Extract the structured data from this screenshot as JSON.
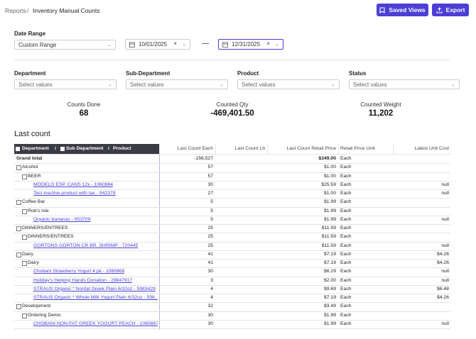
{
  "header": {
    "breadcrumb": [
      "Reports",
      "/",
      "Inventory Manual Counts"
    ],
    "buttons": [
      "Saved Views",
      "Export"
    ]
  },
  "filters": {
    "date_range": {
      "label": "Date Range",
      "preset": "Custom Range",
      "start": "10/01/2025",
      "separator": "—",
      "end": "12/31/2025"
    },
    "fields": [
      {
        "label": "Department",
        "placeholder": "Select values"
      },
      {
        "label": "Sub-Department",
        "placeholder": "Select values"
      },
      {
        "label": "Product",
        "placeholder": "Select values"
      },
      {
        "label": "Status",
        "placeholder": "Select values"
      }
    ]
  },
  "stats": [
    {
      "label": "Counts Done",
      "value": "68"
    },
    {
      "label": "Counted Qty",
      "value": "-469,401.50"
    },
    {
      "label": "Counted Weight",
      "value": "11,202"
    }
  ],
  "table": {
    "title": "Last count",
    "group_header": [
      "Department",
      "/",
      "Sub Department",
      "/",
      "Product"
    ],
    "columns": [
      "Last Count Each",
      "Last Count Lb",
      "Last Count Retail Price",
      "Retail Price Unit",
      "Latest Unit Cost"
    ],
    "grand_total": {
      "name": "Grand total",
      "each": "-156,527",
      "price": "$349.00",
      "unit": "Each"
    },
    "departments": [
      {
        "name": "Alcohol",
        "each": "57",
        "price": "$1.00",
        "unit": "Each",
        "subs": [
          {
            "name": "BEER",
            "each": "57",
            "price": "$1.00",
            "unit": "Each",
            "products": [
              {
                "name": "MODELO ESP. CANS 12x - 1060864",
                "each": "30",
                "price": "$25.59",
                "unit": "Each",
                "cost": "null"
              },
              {
                "name": "Test inactive product with tax - 942378",
                "each": "27",
                "price": "$1.00",
                "unit": "Each",
                "cost": "null"
              }
            ]
          }
        ]
      },
      {
        "name": "Coffee Bar",
        "each": "5",
        "price": "$1.99",
        "unit": "Each",
        "subs": [
          {
            "name": "Rob's Isle",
            "each": "5",
            "price": "$1.99",
            "unit": "Each",
            "products": [
              {
                "name": "Organic bananas - 953709",
                "each": "5",
                "price": "$1.99",
                "unit": "Each",
                "cost": "null"
              }
            ]
          }
        ]
      },
      {
        "name": "DINNERS/ENTREES",
        "each": "25",
        "price": "$11.59",
        "unit": "Each",
        "subs": [
          {
            "name": "DINNERS/ENTREES",
            "each": "25",
            "price": "$11.59",
            "unit": "Each",
            "products": [
              {
                "name": "GORTONS GORTON CR BR. SHRIMP - 720445",
                "each": "25",
                "price": "$11.59",
                "unit": "Each",
                "cost": "null"
              }
            ]
          }
        ]
      },
      {
        "name": "Dairy",
        "each": "41",
        "price": "$7.19",
        "unit": "Each",
        "cost": "$4.26",
        "subs": [
          {
            "name": "Dairy",
            "each": "41",
            "price": "$7.19",
            "unit": "Each",
            "cost": "$4.26",
            "products": [
              {
                "name": "Chobani Strawberry Yogurt 4 pk - 1060868",
                "each": "30",
                "price": "$6.29",
                "unit": "Each",
                "cost": "null"
              },
              {
                "name": "Holiday's Helping Hands Donation - 29847917",
                "each": "3",
                "price": "$2.00",
                "unit": "Each",
                "cost": "null"
              },
              {
                "name": "STRAUS Organic * Nonfat Greek Plain 6/32oz - 5983429",
                "each": "4",
                "price": "$9.69",
                "unit": "Each",
                "cost": "$6.48"
              },
              {
                "name": "STRAUS Organic * Whole Milk Yogurt Plain 6/32oz - 598...",
                "each": "4",
                "price": "$7.19",
                "unit": "Each",
                "cost": "$4.26"
              }
            ]
          }
        ]
      },
      {
        "name": "Development",
        "each": "32",
        "price": "$3.49",
        "unit": "Each",
        "subs": [
          {
            "name": "Ordering Demo",
            "each": "30",
            "price": "$1.99",
            "unit": "Each",
            "products": [
              {
                "name": "CHOBANI NON-FAT GREEK YOGURT PEACH - 1060867",
                "each": "30",
                "price": "$1.99",
                "unit": "Each",
                "cost": "null"
              }
            ]
          }
        ]
      }
    ]
  }
}
